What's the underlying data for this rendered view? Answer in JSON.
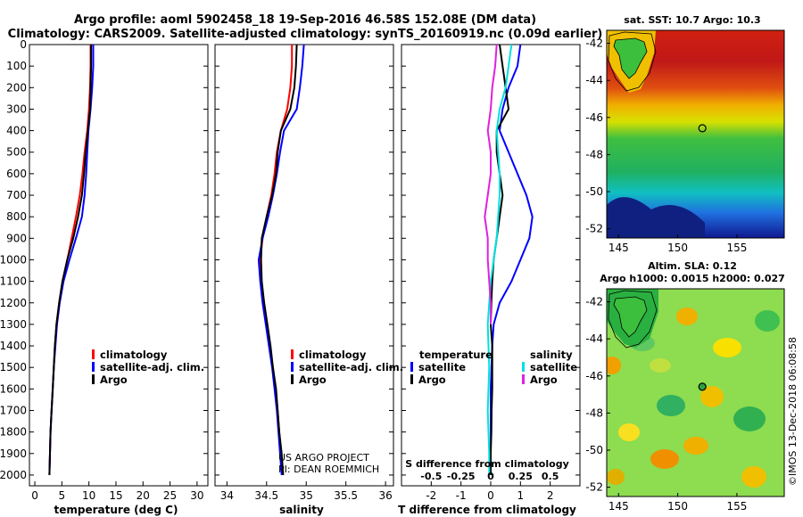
{
  "title_line1": "Argo profile: aoml 5902458_18 19-Sep-2016 46.58S 152.08E (DM data)",
  "title_line2": "Climatology: CARS2009. Satellite-adjusted climatology: synTS_20160919.nc (0.09d earlier)",
  "colors": {
    "climatology": "#ff0000",
    "satellite": "#0000ff",
    "argo": "#000000",
    "sat_salinity": "#00e0e0",
    "clim_salinity": "#e020e0"
  },
  "legend": {
    "climatology": "climatology",
    "satellite_adj": "satellite-adj. clim.",
    "argo": "Argo",
    "temperature": "temperature",
    "salinity": "salinity",
    "satellite": "satellite"
  },
  "credits": {
    "line1": "US ARGO PROJECT",
    "line2": "PI: DEAN ROEMMICH"
  },
  "diff_inner_title": "S difference from climatology",
  "right_top": {
    "title": "sat. SST: 10.7 Argo: 10.3"
  },
  "right_bottom": {
    "title1": "Altim. SLA: 0.12",
    "title2": "Argo h1000: 0.0015 h2000: 0.027"
  },
  "timestamp": "©IMOS 13-Dec-2018 06:08:58",
  "chart_data": [
    {
      "type": "line",
      "name": "temperature profile",
      "xlabel": "temperature (deg C)",
      "ylabel": "",
      "xlim": [
        -1,
        32
      ],
      "ylim": [
        2050,
        0
      ],
      "xticks": [
        0,
        5,
        10,
        15,
        20,
        25,
        30
      ],
      "yticks": [
        0,
        100,
        200,
        300,
        400,
        500,
        600,
        700,
        800,
        900,
        1000,
        1100,
        1200,
        1300,
        1400,
        1500,
        1600,
        1700,
        1800,
        1900,
        2000
      ],
      "series": [
        {
          "name": "climatology",
          "color": "#ff0000",
          "points": [
            [
              10.3,
              0
            ],
            [
              10.3,
              100
            ],
            [
              10.2,
              200
            ],
            [
              10.0,
              300
            ],
            [
              9.7,
              400
            ],
            [
              9.2,
              500
            ],
            [
              8.8,
              600
            ],
            [
              8.3,
              700
            ],
            [
              7.6,
              800
            ],
            [
              6.8,
              900
            ],
            [
              6.0,
              1000
            ],
            [
              5.1,
              1100
            ],
            [
              4.5,
              1200
            ],
            [
              4.0,
              1300
            ],
            [
              3.7,
              1400
            ],
            [
              3.5,
              1500
            ],
            [
              3.3,
              1600
            ],
            [
              3.1,
              1700
            ],
            [
              2.9,
              1800
            ],
            [
              2.8,
              1900
            ],
            [
              2.7,
              2000
            ]
          ]
        },
        {
          "name": "satellite-adj. clim.",
          "color": "#0000ff",
          "points": [
            [
              10.8,
              0
            ],
            [
              10.8,
              100
            ],
            [
              10.6,
              200
            ],
            [
              10.3,
              300
            ],
            [
              9.9,
              400
            ],
            [
              9.7,
              500
            ],
            [
              9.5,
              600
            ],
            [
              9.2,
              700
            ],
            [
              8.7,
              800
            ],
            [
              7.6,
              900
            ],
            [
              6.4,
              1000
            ],
            [
              5.3,
              1100
            ],
            [
              4.6,
              1200
            ],
            [
              4.1,
              1300
            ],
            [
              3.8,
              1400
            ],
            [
              3.5,
              1500
            ],
            [
              3.3,
              1600
            ],
            [
              3.1,
              1700
            ],
            [
              2.9,
              1800
            ],
            [
              2.8,
              1900
            ],
            [
              2.7,
              2000
            ]
          ]
        },
        {
          "name": "Argo",
          "color": "#000000",
          "points": [
            [
              10.4,
              0
            ],
            [
              10.4,
              100
            ],
            [
              10.3,
              200
            ],
            [
              10.2,
              300
            ],
            [
              9.8,
              400
            ],
            [
              9.4,
              500
            ],
            [
              9.1,
              600
            ],
            [
              8.7,
              700
            ],
            [
              8.0,
              800
            ],
            [
              7.1,
              900
            ],
            [
              6.0,
              1000
            ],
            [
              5.1,
              1100
            ],
            [
              4.5,
              1200
            ],
            [
              4.0,
              1300
            ],
            [
              3.7,
              1400
            ],
            [
              3.5,
              1500
            ],
            [
              3.3,
              1600
            ],
            [
              3.1,
              1700
            ],
            [
              2.9,
              1800
            ],
            [
              2.8,
              1900
            ],
            [
              2.7,
              2000
            ]
          ]
        }
      ]
    },
    {
      "type": "line",
      "name": "salinity profile",
      "xlabel": "salinity",
      "xlim": [
        33.85,
        36.1
      ],
      "ylim": [
        2050,
        0
      ],
      "xticks": [
        34,
        34.5,
        35,
        35.5,
        36
      ],
      "series": [
        {
          "name": "climatology",
          "color": "#ff0000",
          "points": [
            [
              34.82,
              0
            ],
            [
              34.82,
              100
            ],
            [
              34.8,
              200
            ],
            [
              34.76,
              300
            ],
            [
              34.68,
              400
            ],
            [
              34.63,
              500
            ],
            [
              34.6,
              600
            ],
            [
              34.56,
              700
            ],
            [
              34.5,
              800
            ],
            [
              34.45,
              900
            ],
            [
              34.42,
              1000
            ],
            [
              34.43,
              1100
            ],
            [
              34.46,
              1200
            ],
            [
              34.5,
              1300
            ],
            [
              34.54,
              1400
            ],
            [
              34.58,
              1500
            ],
            [
              34.61,
              1600
            ],
            [
              34.64,
              1700
            ],
            [
              34.66,
              1800
            ],
            [
              34.68,
              1900
            ],
            [
              34.7,
              2000
            ]
          ]
        },
        {
          "name": "satellite-adj. clim.",
          "color": "#0000ff",
          "points": [
            [
              34.97,
              0
            ],
            [
              34.95,
              100
            ],
            [
              34.92,
              200
            ],
            [
              34.88,
              300
            ],
            [
              34.72,
              400
            ],
            [
              34.67,
              500
            ],
            [
              34.63,
              600
            ],
            [
              34.58,
              700
            ],
            [
              34.52,
              800
            ],
            [
              34.45,
              900
            ],
            [
              34.4,
              1000
            ],
            [
              34.42,
              1100
            ],
            [
              34.45,
              1200
            ],
            [
              34.49,
              1300
            ],
            [
              34.53,
              1400
            ],
            [
              34.57,
              1500
            ],
            [
              34.6,
              1600
            ],
            [
              34.63,
              1700
            ],
            [
              34.65,
              1800
            ],
            [
              34.67,
              1900
            ],
            [
              34.69,
              2000
            ]
          ]
        },
        {
          "name": "Argo",
          "color": "#000000",
          "points": [
            [
              34.88,
              0
            ],
            [
              34.87,
              100
            ],
            [
              34.85,
              200
            ],
            [
              34.8,
              300
            ],
            [
              34.68,
              400
            ],
            [
              34.64,
              500
            ],
            [
              34.62,
              600
            ],
            [
              34.57,
              700
            ],
            [
              34.5,
              800
            ],
            [
              34.44,
              900
            ],
            [
              34.43,
              1000
            ],
            [
              34.44,
              1100
            ],
            [
              34.47,
              1200
            ],
            [
              34.51,
              1300
            ],
            [
              34.55,
              1400
            ],
            [
              34.58,
              1500
            ],
            [
              34.62,
              1600
            ],
            [
              34.64,
              1700
            ],
            [
              34.66,
              1800
            ],
            [
              34.69,
              1900
            ],
            [
              34.71,
              2000
            ]
          ]
        }
      ]
    },
    {
      "type": "line",
      "name": "difference from climatology",
      "xlabel": "T difference from climatology",
      "inner_xlabel": "S difference from climatology",
      "xlim": [
        -3,
        3
      ],
      "ylim": [
        2050,
        0
      ],
      "xticks": [
        -2,
        -1,
        0,
        1,
        2
      ],
      "xtick_labels": [
        "-2",
        "-1",
        "0",
        "1",
        "2"
      ],
      "inner_xticks": [
        -0.5,
        -0.25,
        0,
        0.25,
        0.5
      ],
      "inner_xtick_labels": [
        "-0.5",
        "-0.25",
        "0",
        "0.25",
        "0.5"
      ],
      "series": [
        {
          "name": "temperature satellite",
          "color": "#0000ff",
          "points": [
            [
              1.0,
              0
            ],
            [
              0.9,
              100
            ],
            [
              0.6,
              200
            ],
            [
              0.4,
              300
            ],
            [
              0.3,
              400
            ],
            [
              0.6,
              500
            ],
            [
              0.9,
              600
            ],
            [
              1.2,
              700
            ],
            [
              1.4,
              800
            ],
            [
              1.3,
              900
            ],
            [
              1.0,
              1000
            ],
            [
              0.7,
              1100
            ],
            [
              0.3,
              1200
            ],
            [
              0.1,
              1300
            ],
            [
              0.05,
              1400
            ],
            [
              0.0,
              1600
            ],
            [
              0.0,
              2000
            ]
          ]
        },
        {
          "name": "temperature Argo",
          "color": "#000000",
          "points": [
            [
              0.3,
              0
            ],
            [
              0.4,
              100
            ],
            [
              0.5,
              200
            ],
            [
              0.6,
              300
            ],
            [
              0.2,
              400
            ],
            [
              0.2,
              500
            ],
            [
              0.3,
              600
            ],
            [
              0.4,
              700
            ],
            [
              0.3,
              800
            ],
            [
              0.2,
              900
            ],
            [
              0.1,
              1000
            ],
            [
              0.05,
              1100
            ],
            [
              0.02,
              1200
            ],
            [
              0.0,
              1300
            ],
            [
              0.05,
              1400
            ],
            [
              0.05,
              1500
            ],
            [
              0.05,
              1600
            ],
            [
              0.03,
              1700
            ],
            [
              0.02,
              1800
            ],
            [
              0.0,
              1900
            ],
            [
              0.0,
              2000
            ]
          ]
        },
        {
          "name": "salinity satellite",
          "color": "#00e0e0",
          "points": [
            [
              0.7,
              0
            ],
            [
              0.6,
              100
            ],
            [
              0.5,
              200
            ],
            [
              0.3,
              300
            ],
            [
              0.2,
              400
            ],
            [
              0.25,
              500
            ],
            [
              0.3,
              600
            ],
            [
              0.3,
              700
            ],
            [
              0.25,
              800
            ],
            [
              0.2,
              900
            ],
            [
              0.1,
              1000
            ],
            [
              0.0,
              1100
            ],
            [
              -0.1,
              1300
            ],
            [
              -0.05,
              1500
            ],
            [
              -0.1,
              1700
            ],
            [
              -0.05,
              1900
            ],
            [
              -0.05,
              2000
            ]
          ]
        },
        {
          "name": "salinity Argo",
          "color": "#e020e0",
          "points": [
            [
              0.2,
              0
            ],
            [
              0.15,
              100
            ],
            [
              0.05,
              200
            ],
            [
              0.0,
              300
            ],
            [
              -0.1,
              400
            ],
            [
              0.0,
              500
            ],
            [
              0.0,
              600
            ],
            [
              -0.1,
              700
            ],
            [
              -0.2,
              800
            ],
            [
              -0.1,
              900
            ],
            [
              -0.1,
              1000
            ],
            [
              -0.05,
              1100
            ],
            [
              0.0,
              1200
            ],
            [
              0.0,
              1300
            ]
          ]
        }
      ]
    },
    {
      "type": "heatmap",
      "name": "sat SST map",
      "xlim": [
        144,
        159
      ],
      "ylim": [
        -52.5,
        -41.3
      ],
      "xticks": [
        145,
        150,
        155
      ],
      "yticks": [
        -42,
        -44,
        -46,
        -48,
        -50,
        -52
      ],
      "ytick_labels": [
        "-42",
        "-44",
        "-46",
        "-48",
        "-50",
        "-52"
      ],
      "marker": {
        "lon": 152.08,
        "lat": -46.58
      }
    },
    {
      "type": "heatmap",
      "name": "altimetry SLA map",
      "xlim": [
        144,
        159
      ],
      "ylim": [
        -52.5,
        -41.3
      ],
      "xticks": [
        145,
        150,
        155
      ],
      "yticks": [
        -42,
        -44,
        -46,
        -48,
        -50,
        -52
      ],
      "ytick_labels": [
        "-42",
        "-44",
        "-46",
        "-48",
        "-50",
        "-52"
      ],
      "marker": {
        "lon": 152.08,
        "lat": -46.58
      }
    }
  ]
}
